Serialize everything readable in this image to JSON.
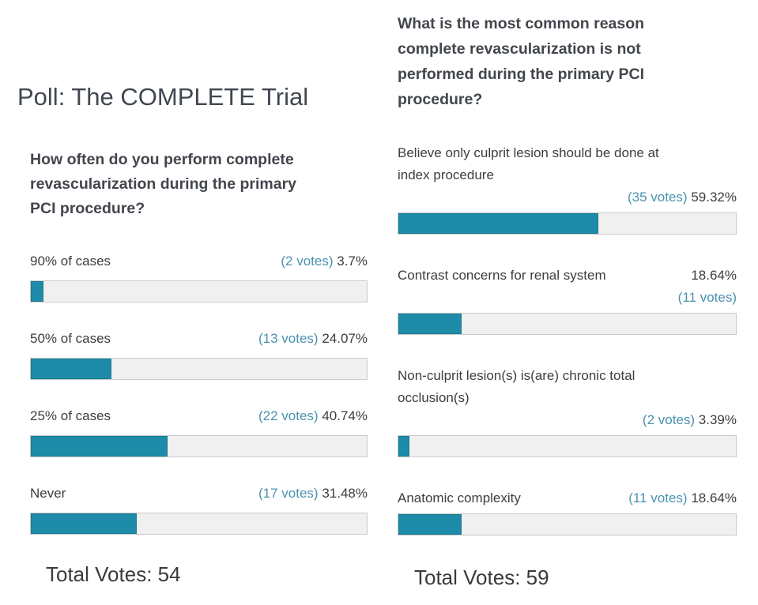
{
  "title": "Poll: The COMPLETE Trial",
  "colors": {
    "bar_fill": "#1e8ca8",
    "bar_track": "#f0f0f0",
    "bar_border": "#cbcbcb",
    "votes_text": "#4a92af",
    "label_text": "#3d3d3d",
    "title_text": "#414750"
  },
  "polls": [
    {
      "question": "How often do you perform complete\nrevascularization during the primary\nPCI procedure?",
      "total_label": "Total Votes: 54",
      "options": [
        {
          "label": "90% of cases",
          "votes": "(2 votes)",
          "percent": "3.7%",
          "percent_value": 3.7
        },
        {
          "label": "50% of cases",
          "votes": "(13 votes)",
          "percent": "24.07%",
          "percent_value": 24.07
        },
        {
          "label": "25% of cases",
          "votes": "(22 votes)",
          "percent": "40.74%",
          "percent_value": 40.74
        },
        {
          "label": "Never",
          "votes": "(17 votes)",
          "percent": "31.48%",
          "percent_value": 31.48
        }
      ]
    },
    {
      "question": "What is the most common reason\ncomplete revascularization is not\nperformed during the primary PCI\nprocedure?",
      "total_label": "Total Votes: 59",
      "options": [
        {
          "label": "Believe only culprit lesion should be done at\nindex procedure",
          "votes": "(35 votes)",
          "percent": "59.32%",
          "percent_value": 59.32
        },
        {
          "label": "Contrast concerns for renal system",
          "votes": "(11 votes)",
          "percent": "18.64%",
          "percent_value": 18.64
        },
        {
          "label": "Non-culprit lesion(s) is(are) chronic total\nocclusion(s)",
          "votes": "(2 votes)",
          "percent": "3.39%",
          "percent_value": 3.39
        },
        {
          "label": "Anatomic complexity",
          "votes": "(11 votes)",
          "percent": "18.64%",
          "percent_value": 18.64
        }
      ]
    }
  ]
}
